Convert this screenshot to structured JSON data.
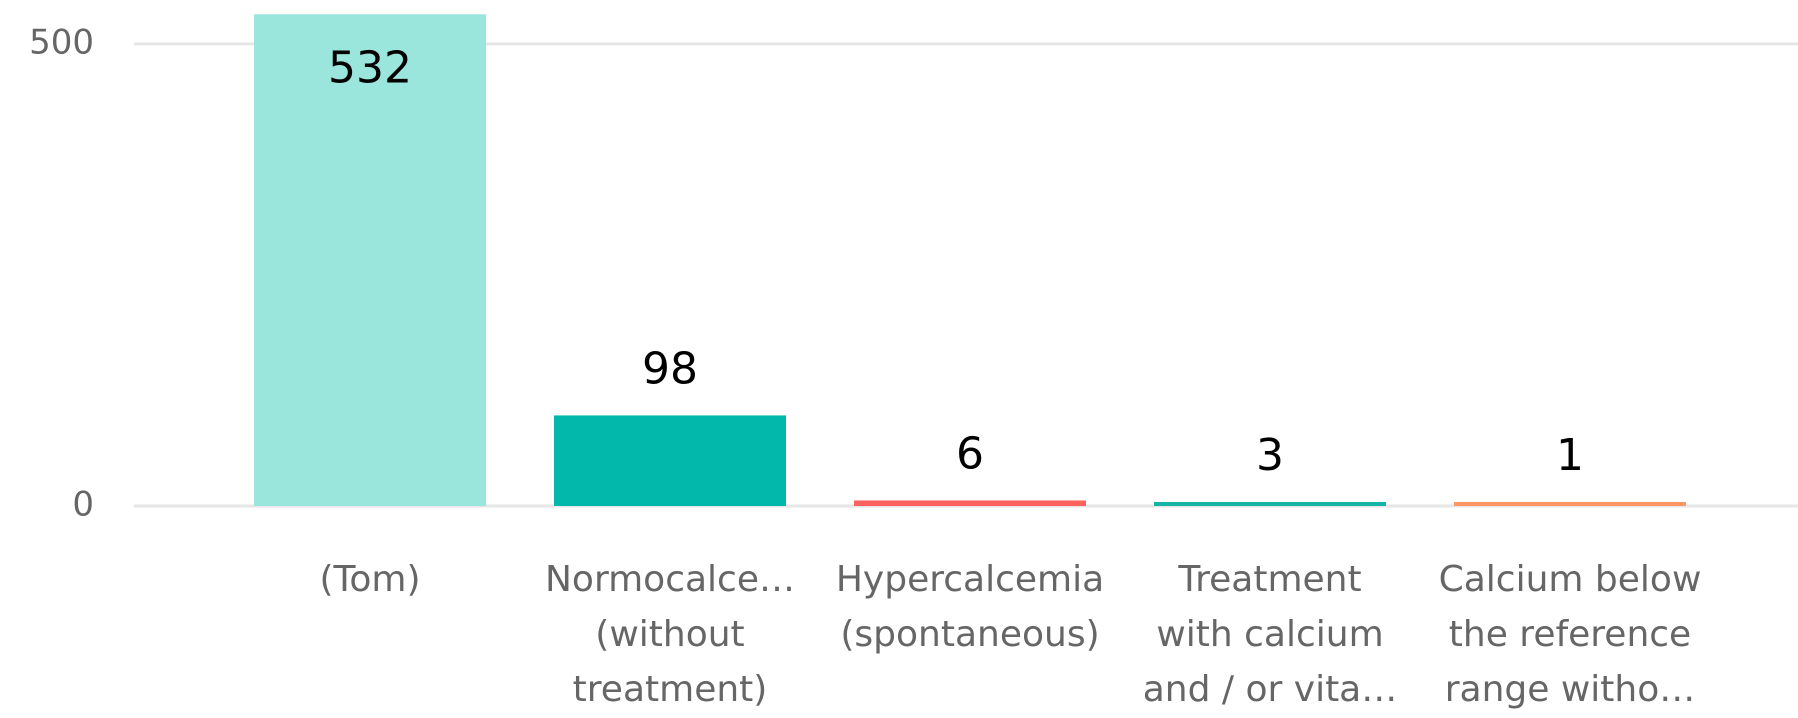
{
  "chart_data": {
    "type": "bar",
    "categories": [
      "(Tom)",
      "Normocalce…\n(without\ntreatment)",
      "Hypercalcemia\n(spontaneous)",
      "Treatment\nwith calcium\nand / or vita…",
      "Calcium below\nthe reference\nrange witho…"
    ],
    "values": [
      532,
      98,
      6,
      3,
      1
    ],
    "colors": [
      "#9ae5dc",
      "#01b8aa",
      "#fd625e",
      "#13b5a7",
      "#fe9666"
    ],
    "ylim": [
      0,
      535
    ],
    "yticks": [
      0,
      500
    ],
    "grid": true
  }
}
